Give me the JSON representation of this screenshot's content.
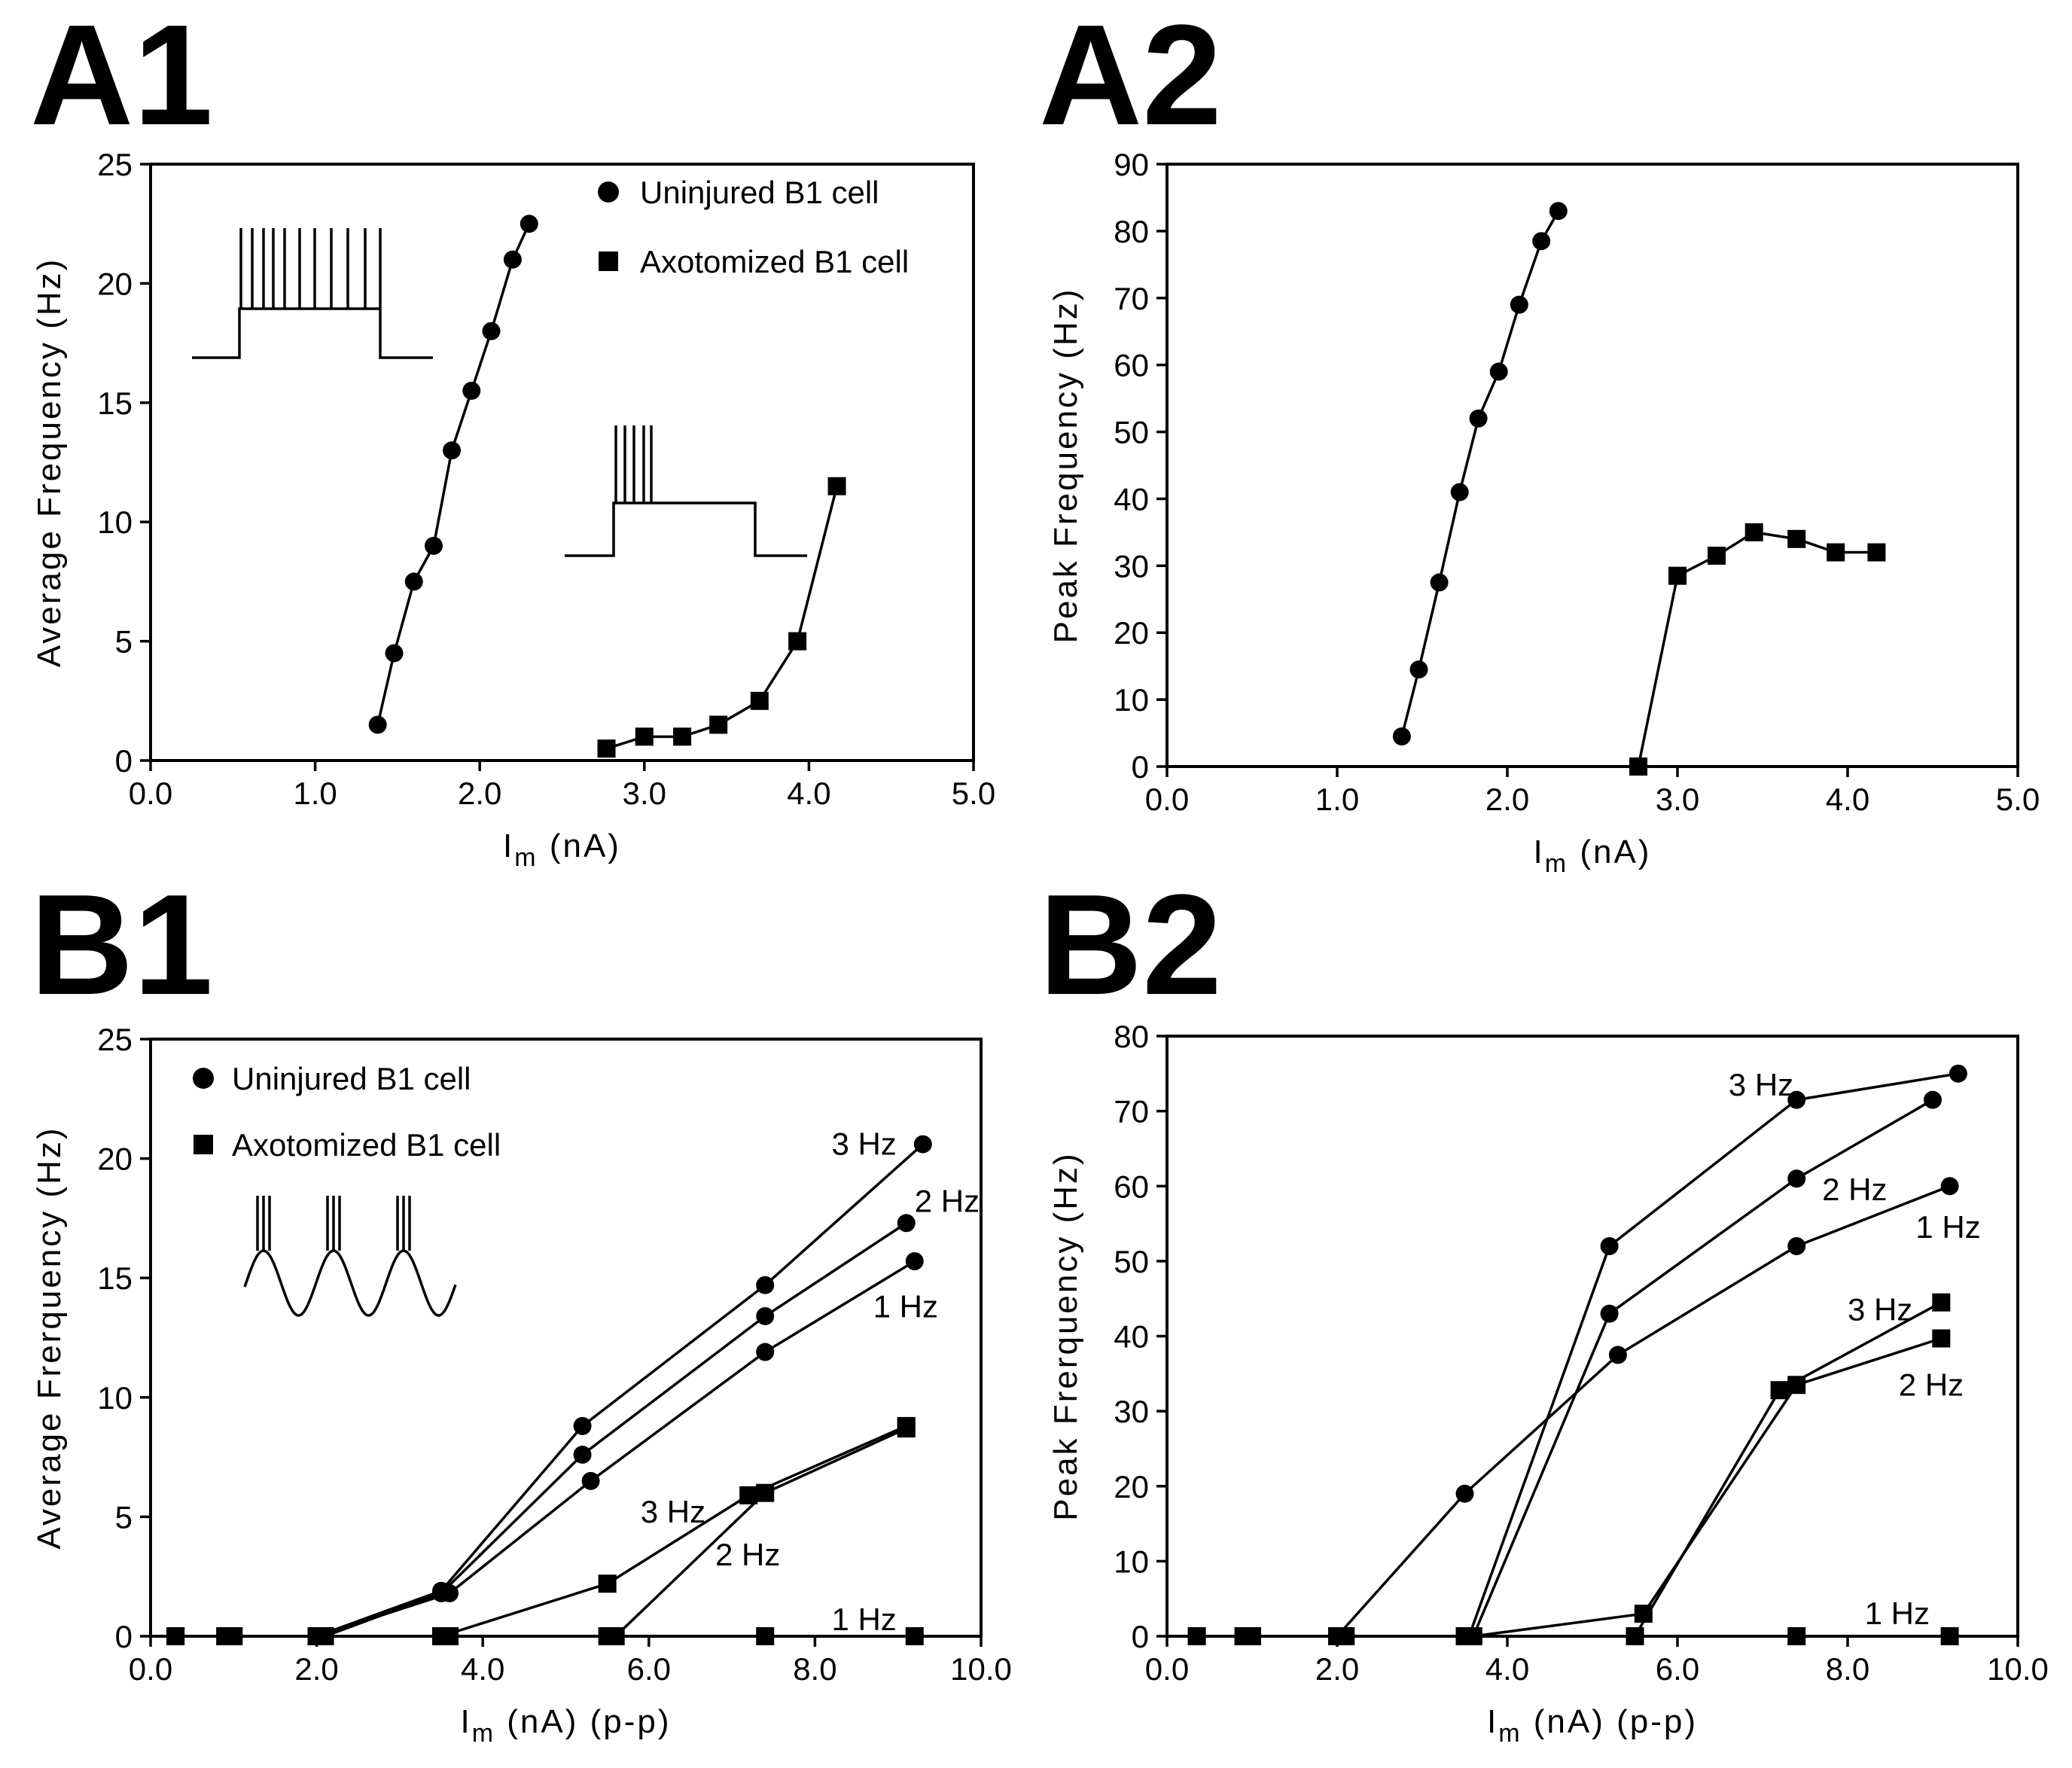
{
  "chart_data": [
    {
      "id": "A1",
      "panel_label": "A1",
      "type": "scatter",
      "xlabel_main": "I",
      "xlabel_sub": "m",
      "xlabel_unit": " (nA)",
      "ylabel": "Average  Frequency  (Hz)",
      "xlim": [
        0,
        5
      ],
      "ylim": [
        0,
        25
      ],
      "x_ticks": [
        0,
        1,
        2,
        3,
        4,
        5
      ],
      "x_tick_labels": [
        "0.0",
        "1.0",
        "2.0",
        "3.0",
        "4.0",
        "5.0"
      ],
      "y_ticks": [
        0,
        5,
        10,
        15,
        20,
        25
      ],
      "y_tick_labels": [
        "0",
        "5",
        "10",
        "15",
        "20",
        "25"
      ],
      "legend": [
        {
          "marker": "circle",
          "label": "Uninjured B1 cell"
        },
        {
          "marker": "square",
          "label": "Axotomized B1 cell"
        }
      ],
      "series": [
        {
          "name": "Uninjured B1 cell",
          "marker": "circle",
          "x": [
            1.38,
            1.48,
            1.6,
            1.72,
            1.83,
            1.95,
            2.07,
            2.2,
            2.3
          ],
          "y": [
            1.5,
            4.5,
            7.5,
            9,
            13,
            15.5,
            18,
            21,
            22.5
          ]
        },
        {
          "name": "Axotomized B1 cell",
          "marker": "square",
          "x": [
            2.77,
            3.0,
            3.23,
            3.45,
            3.7,
            3.93,
            4.17
          ],
          "y": [
            0.5,
            1,
            1,
            1.5,
            2.5,
            5,
            11.5
          ]
        }
      ],
      "annotations": []
    },
    {
      "id": "A2",
      "panel_label": "A2",
      "type": "scatter",
      "xlabel_main": "I",
      "xlabel_sub": "m",
      "xlabel_unit": " (nA)",
      "ylabel": "Peak  Frequency  (Hz)",
      "xlim": [
        0,
        5
      ],
      "ylim": [
        0,
        90
      ],
      "x_ticks": [
        0,
        1,
        2,
        3,
        4,
        5
      ],
      "x_tick_labels": [
        "0.0",
        "1.0",
        "2.0",
        "3.0",
        "4.0",
        "5.0"
      ],
      "y_ticks": [
        0,
        10,
        20,
        30,
        40,
        50,
        60,
        70,
        80,
        90
      ],
      "y_tick_labels": [
        "0",
        "10",
        "20",
        "30",
        "40",
        "50",
        "60",
        "70",
        "80",
        "90"
      ],
      "legend": [],
      "series": [
        {
          "name": "Uninjured B1 cell",
          "marker": "circle",
          "x": [
            1.38,
            1.48,
            1.6,
            1.72,
            1.83,
            1.95,
            2.07,
            2.2,
            2.3
          ],
          "y": [
            4.5,
            14.5,
            27.5,
            41,
            52,
            59,
            69,
            78.5,
            83
          ]
        },
        {
          "name": "Axotomized B1 cell",
          "marker": "square",
          "x": [
            2.77,
            3.0,
            3.23,
            3.45,
            3.7,
            3.93,
            4.17
          ],
          "y": [
            0,
            28.5,
            31.5,
            35,
            34,
            32,
            32
          ]
        }
      ],
      "annotations": []
    },
    {
      "id": "B1",
      "panel_label": "B1",
      "type": "line",
      "xlabel_main": "I",
      "xlabel_sub": "m",
      "xlabel_unit": " (nA) (p-p)",
      "ylabel": "Average  Frerquency  (Hz)",
      "xlim": [
        0,
        10
      ],
      "ylim": [
        0,
        25
      ],
      "x_ticks": [
        0,
        2,
        4,
        6,
        8,
        10
      ],
      "x_tick_labels": [
        "0.0",
        "2.0",
        "4.0",
        "6.0",
        "8.0",
        "10.0"
      ],
      "y_ticks": [
        0,
        5,
        10,
        15,
        20,
        25
      ],
      "y_tick_labels": [
        "0",
        "5",
        "10",
        "15",
        "20",
        "25"
      ],
      "legend": [
        {
          "marker": "circle",
          "label": "Uninjured B1 cell"
        },
        {
          "marker": "square",
          "label": "Axotomized B1 cell"
        }
      ],
      "series": [
        {
          "name": "Uninjured 3 Hz",
          "marker": "circle",
          "x": [
            0.3,
            0.9,
            2.0,
            3.5,
            5.2,
            7.4,
            9.3
          ],
          "y": [
            0,
            0,
            0,
            1.9,
            8.8,
            14.7,
            20.6
          ]
        },
        {
          "name": "Uninjured 2 Hz",
          "marker": "circle",
          "x": [
            0.3,
            1.0,
            2.1,
            3.5,
            5.2,
            7.4,
            9.1
          ],
          "y": [
            0,
            0,
            0,
            1.8,
            7.6,
            13.4,
            17.3
          ]
        },
        {
          "name": "Uninjured 1 Hz",
          "marker": "circle",
          "x": [
            0.3,
            0.9,
            2.0,
            3.6,
            5.3,
            7.4,
            9.2
          ],
          "y": [
            0,
            0,
            0,
            1.8,
            6.5,
            11.9,
            15.7
          ]
        },
        {
          "name": "Axotomized 3 Hz",
          "marker": "square",
          "x": [
            0.3,
            0.9,
            2.0,
            3.5,
            5.5,
            7.2,
            9.1
          ],
          "y": [
            0,
            0,
            0,
            0,
            2.2,
            5.9,
            8.8
          ]
        },
        {
          "name": "Axotomized 2 Hz",
          "marker": "square",
          "x": [
            0.3,
            1.0,
            2.1,
            3.6,
            5.6,
            7.4,
            9.1
          ],
          "y": [
            0,
            0,
            0,
            0,
            0,
            6.0,
            8.7
          ]
        },
        {
          "name": "Axotomized 1 Hz",
          "marker": "square",
          "x": [
            0.3,
            0.9,
            2.0,
            3.5,
            5.5,
            7.4,
            9.2
          ],
          "y": [
            0,
            0,
            0,
            0,
            0,
            0,
            0
          ]
        }
      ],
      "annotations": [
        {
          "text": "3 Hz",
          "x": 8.2,
          "y": 20.6
        },
        {
          "text": "2 Hz",
          "x": 9.2,
          "y": 18.2
        },
        {
          "text": "1 Hz",
          "x": 8.7,
          "y": 13.8
        },
        {
          "text": "3 Hz",
          "x": 5.9,
          "y": 5.2
        },
        {
          "text": "2 Hz",
          "x": 6.8,
          "y": 3.4
        },
        {
          "text": "1 Hz",
          "x": 8.2,
          "y": 0.7
        }
      ]
    },
    {
      "id": "B2",
      "panel_label": "B2",
      "type": "line",
      "xlabel_main": "I",
      "xlabel_sub": "m",
      "xlabel_unit": " (nA) (p-p)",
      "ylabel": "Peak Frerquency  (Hz)",
      "xlim": [
        0,
        10
      ],
      "ylim": [
        0,
        80
      ],
      "x_ticks": [
        0,
        2,
        4,
        6,
        8,
        10
      ],
      "x_tick_labels": [
        "0.0",
        "2.0",
        "4.0",
        "6.0",
        "8.0",
        "10.0"
      ],
      "y_ticks": [
        0,
        10,
        20,
        30,
        40,
        50,
        60,
        70,
        80
      ],
      "y_tick_labels": [
        "0",
        "10",
        "20",
        "30",
        "40",
        "50",
        "60",
        "70",
        "80"
      ],
      "legend": [],
      "series": [
        {
          "name": "Uninjured 3 Hz",
          "marker": "circle",
          "x": [
            0.35,
            0.9,
            2.0,
            3.55,
            5.2,
            7.4,
            9.3
          ],
          "y": [
            0,
            0,
            0,
            0,
            52,
            71.5,
            75
          ]
        },
        {
          "name": "Uninjured 2 Hz",
          "marker": "circle",
          "x": [
            0.35,
            1.0,
            2.1,
            3.6,
            5.2,
            7.4,
            9.0
          ],
          "y": [
            0,
            0,
            0,
            0,
            43,
            61,
            71.5
          ]
        },
        {
          "name": "Uninjured 1 Hz",
          "marker": "circle",
          "x": [
            0.35,
            0.9,
            2.0,
            3.5,
            5.3,
            7.4,
            9.2
          ],
          "y": [
            0,
            0,
            0,
            19,
            37.5,
            52,
            60
          ]
        },
        {
          "name": "Axotomized 3 Hz",
          "marker": "square",
          "x": [
            0.35,
            0.9,
            2.0,
            3.5,
            5.5,
            7.2,
            9.1
          ],
          "y": [
            0,
            0,
            0,
            0,
            0,
            32.8,
            44.5
          ]
        },
        {
          "name": "Axotomized 2 Hz",
          "marker": "square",
          "x": [
            0.35,
            1.0,
            2.1,
            3.6,
            5.6,
            7.4,
            9.1
          ],
          "y": [
            0,
            0,
            0,
            0,
            3,
            33.5,
            39.7
          ]
        },
        {
          "name": "Axotomized 1 Hz",
          "marker": "square",
          "x": [
            0.35,
            0.9,
            2.0,
            3.5,
            5.5,
            7.4,
            9.2
          ],
          "y": [
            0,
            0,
            0,
            0,
            0,
            0,
            0
          ]
        }
      ],
      "annotations": [
        {
          "text": "3 Hz",
          "x": 6.6,
          "y": 73.5
        },
        {
          "text": "2 Hz",
          "x": 7.7,
          "y": 59.5
        },
        {
          "text": "1 Hz",
          "x": 8.8,
          "y": 54.5
        },
        {
          "text": "3 Hz",
          "x": 8.0,
          "y": 43.5
        },
        {
          "text": "2 Hz",
          "x": 8.6,
          "y": 33.5
        },
        {
          "text": "1 Hz",
          "x": 8.2,
          "y": 3
        }
      ]
    }
  ]
}
